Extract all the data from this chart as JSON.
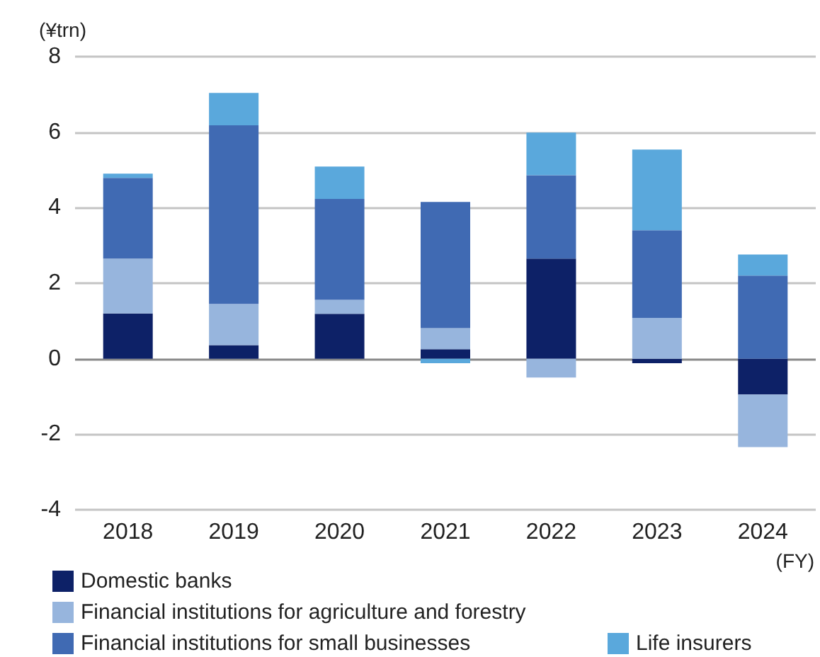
{
  "chart_data": {
    "type": "bar",
    "stacked": true,
    "xlabel": "(FY)",
    "ylabel": "(¥trn)",
    "categories": [
      "2018",
      "2019",
      "2020",
      "2021",
      "2022",
      "2023",
      "2024"
    ],
    "series": [
      {
        "name": "Domestic banks",
        "color": "#0d2167",
        "values": [
          1.2,
          0.36,
          1.19,
          0.25,
          2.65,
          -0.12,
          -0.95
        ]
      },
      {
        "name": "Financial institutions for agriculture and forestry",
        "color": "#97b5dd",
        "values": [
          1.45,
          1.09,
          0.37,
          0.56,
          -0.5,
          1.08,
          -1.39
        ]
      },
      {
        "name": "Financial institutions for small businesses",
        "color": "#406ab3",
        "values": [
          2.14,
          4.73,
          2.67,
          3.34,
          2.21,
          2.32,
          2.2
        ]
      },
      {
        "name": "Life insurers",
        "color": "#5aa8dc",
        "values": [
          0.11,
          0.86,
          0.86,
          -0.12,
          1.13,
          2.14,
          0.56
        ]
      }
    ],
    "ylim": [
      -4,
      8
    ],
    "yticks": [
      -4,
      -2,
      0,
      2,
      4,
      6,
      8
    ],
    "grid": "y",
    "legend": "bottom"
  }
}
